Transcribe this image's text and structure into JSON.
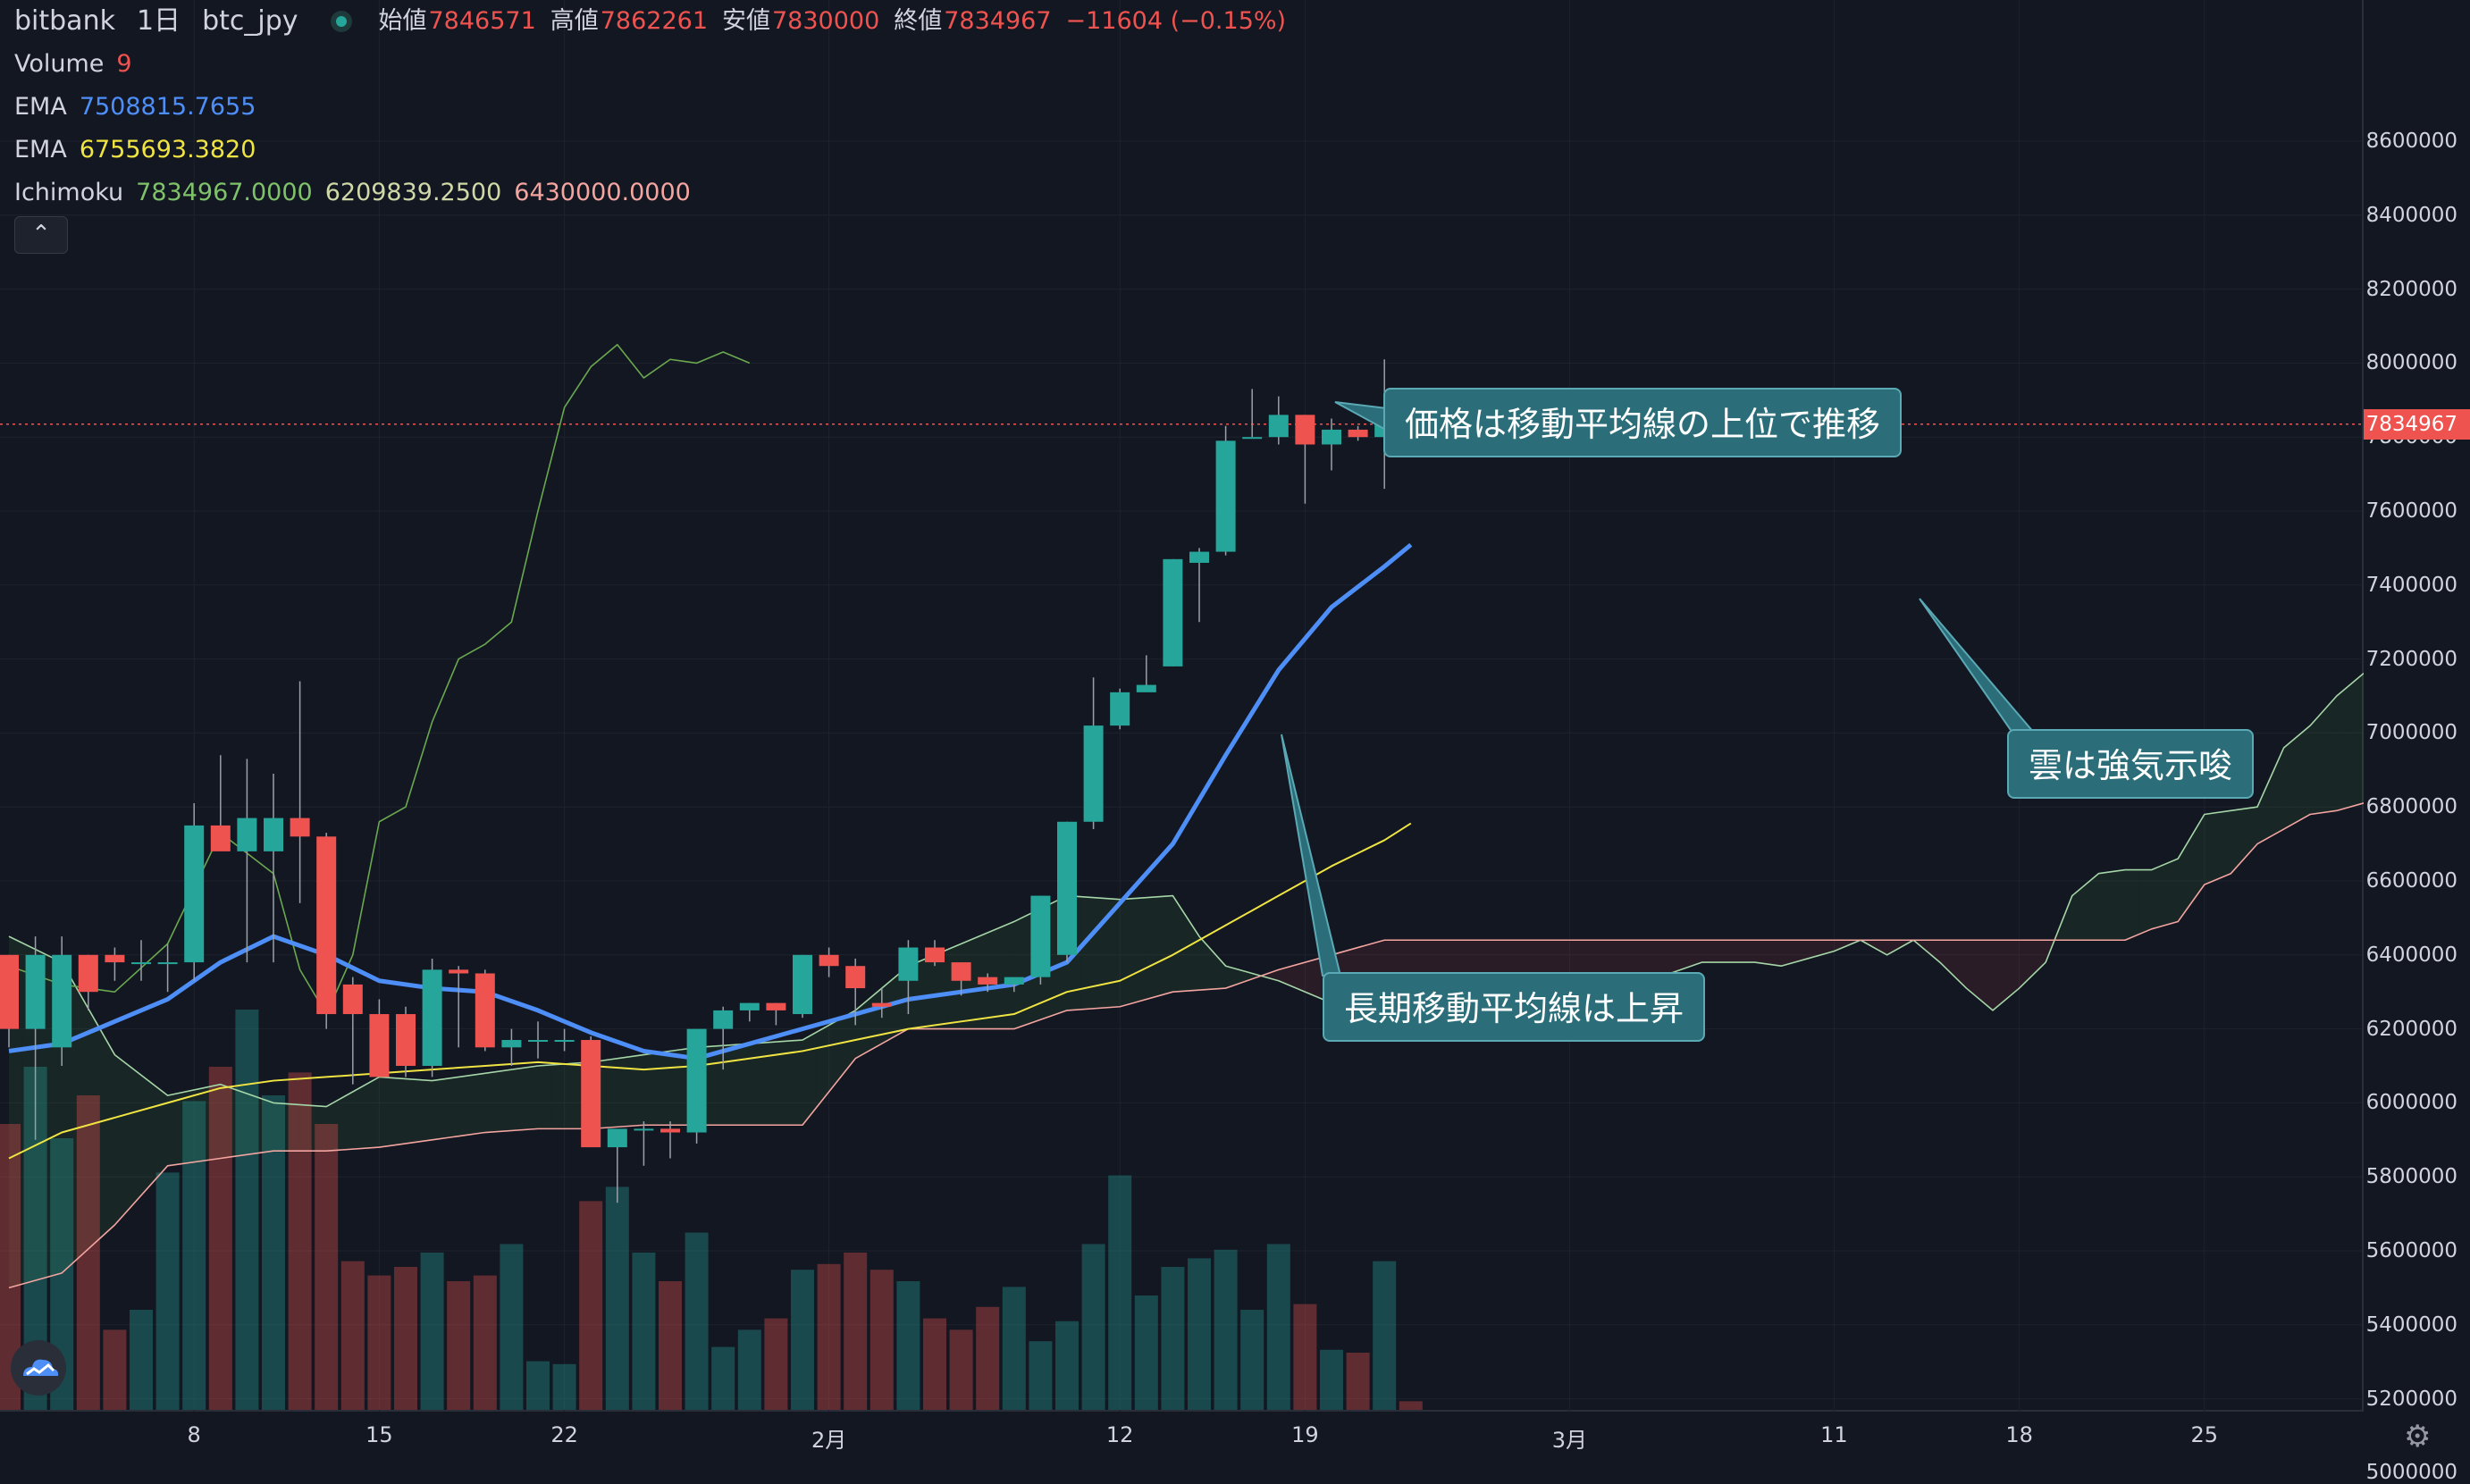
{
  "header": {
    "symbol": "bitbank",
    "interval": "1日",
    "pair": "btc_jpy",
    "ohlc": [
      {
        "label": "始値",
        "value": "7846571"
      },
      {
        "label": "高値",
        "value": "7862261"
      },
      {
        "label": "安値",
        "value": "7830000"
      },
      {
        "label": "終値",
        "value": "7834967"
      }
    ],
    "change": "−11604 (−0.15%)"
  },
  "indicators": [
    {
      "name": "Volume",
      "values": [
        "9"
      ],
      "colors": [
        "#ef5350"
      ]
    },
    {
      "name": "EMA",
      "values": [
        "7508815.7655"
      ],
      "colors": [
        "#4e8ef7"
      ]
    },
    {
      "name": "EMA",
      "values": [
        "6755693.3820"
      ],
      "colors": [
        "#f0e442"
      ]
    },
    {
      "name": "Ichimoku",
      "values": [
        "7834967.0000",
        "6209839.2500",
        "6430000.0000"
      ],
      "colors": [
        "#7fc26a",
        "#cfd8a6",
        "#f4a5a0"
      ]
    }
  ],
  "collapse_icon": "chevron-up-icon",
  "price_axis": {
    "ticks": [
      "8600000",
      "8400000",
      "8200000",
      "8000000",
      "7800000",
      "7600000",
      "7400000",
      "7200000",
      "7000000",
      "6800000",
      "6600000",
      "6400000",
      "6200000",
      "6000000",
      "5800000",
      "5600000",
      "5400000",
      "5200000",
      "5000000"
    ],
    "last_price": "7834967"
  },
  "time_axis": {
    "labels": [
      {
        "text": "8",
        "day": 8
      },
      {
        "text": "15",
        "day": 15
      },
      {
        "text": "22",
        "day": 22
      },
      {
        "text": "2月",
        "day": 32
      },
      {
        "text": "12",
        "day": 43
      },
      {
        "text": "19",
        "day": 50
      },
      {
        "text": "3月",
        "day": 60
      },
      {
        "text": "11",
        "day": 70
      },
      {
        "text": "18",
        "day": 77
      },
      {
        "text": "25",
        "day": 84
      }
    ]
  },
  "annotations": [
    {
      "text": "価格は移動平均線の上位で推移"
    },
    {
      "text": "雲は強気示唆"
    },
    {
      "text": "長期移動平均線は上昇"
    }
  ],
  "colors": {
    "up": "#26a69a",
    "down": "#ef5350",
    "background": "#131722",
    "grid": "#1e222d",
    "ema_fast": "#4e8ef7",
    "ema_slow": "#f0e442"
  },
  "chart_data": {
    "type": "candlestick",
    "x_unit": "day (1 = Jan 1)",
    "ylim": [
      4900000,
      8700000
    ],
    "candles": [
      [
        1,
        6400000,
        6400000,
        6150000,
        6200000,
        1.0
      ],
      [
        2,
        6200000,
        6450000,
        5900000,
        6400000,
        1.2
      ],
      [
        3,
        6150000,
        6450000,
        6100000,
        6400000,
        0.95
      ],
      [
        4,
        6400000,
        6400000,
        6250000,
        6300000,
        1.1
      ],
      [
        5,
        6400000,
        6420000,
        6330000,
        6380000,
        0.28
      ],
      [
        6,
        6380000,
        6440000,
        6330000,
        6380000,
        0.35
      ],
      [
        7,
        6380000,
        6430000,
        6300000,
        6380000,
        0.83
      ],
      [
        8,
        6380000,
        6810000,
        6330000,
        6750000,
        1.08
      ],
      [
        9,
        6750000,
        6940000,
        6700000,
        6680000,
        1.2
      ],
      [
        10,
        6680000,
        6930000,
        6380000,
        6770000,
        1.4
      ],
      [
        11,
        6680000,
        6890000,
        6380000,
        6770000,
        1.1
      ],
      [
        12,
        6770000,
        7140000,
        6540000,
        6720000,
        1.18
      ],
      [
        13,
        6720000,
        6730000,
        6200000,
        6240000,
        1.0
      ],
      [
        14,
        6320000,
        6340000,
        6050000,
        6240000,
        0.52
      ],
      [
        15,
        6240000,
        6280000,
        6070000,
        6070000,
        0.47
      ],
      [
        16,
        6240000,
        6260000,
        6070000,
        6100000,
        0.5
      ],
      [
        17,
        6100000,
        6390000,
        6070000,
        6360000,
        0.55
      ],
      [
        18,
        6360000,
        6370000,
        6150000,
        6350000,
        0.45
      ],
      [
        19,
        6350000,
        6360000,
        6140000,
        6150000,
        0.47
      ],
      [
        20,
        6150000,
        6200000,
        6100000,
        6170000,
        0.58
      ],
      [
        21,
        6170000,
        6220000,
        6120000,
        6170000,
        0.17
      ],
      [
        22,
        6170000,
        6200000,
        6140000,
        6170000,
        0.16
      ],
      [
        23,
        6170000,
        6180000,
        5880000,
        5880000,
        0.73
      ],
      [
        24,
        5880000,
        5920000,
        5730000,
        5930000,
        0.78
      ],
      [
        25,
        5930000,
        5950000,
        5830000,
        5930000,
        0.55
      ],
      [
        26,
        5930000,
        5950000,
        5850000,
        5920000,
        0.45
      ],
      [
        27,
        5920000,
        6180000,
        5890000,
        6200000,
        0.62
      ],
      [
        28,
        6200000,
        6260000,
        6090000,
        6250000,
        0.22
      ],
      [
        29,
        6250000,
        6270000,
        6220000,
        6270000,
        0.28
      ],
      [
        30,
        6270000,
        6270000,
        6210000,
        6250000,
        0.32
      ],
      [
        31,
        6240000,
        6400000,
        6230000,
        6400000,
        0.49
      ],
      [
        32,
        6400000,
        6420000,
        6340000,
        6370000,
        0.51
      ],
      [
        33,
        6370000,
        6390000,
        6210000,
        6310000,
        0.55
      ],
      [
        34,
        6270000,
        6310000,
        6230000,
        6260000,
        0.49
      ],
      [
        35,
        6330000,
        6440000,
        6240000,
        6420000,
        0.45
      ],
      [
        36,
        6420000,
        6440000,
        6370000,
        6380000,
        0.32
      ],
      [
        37,
        6380000,
        6380000,
        6290000,
        6330000,
        0.28
      ],
      [
        38,
        6340000,
        6350000,
        6300000,
        6320000,
        0.36
      ],
      [
        39,
        6320000,
        6330000,
        6300000,
        6340000,
        0.43
      ],
      [
        40,
        6340000,
        6560000,
        6320000,
        6560000,
        0.24
      ],
      [
        41,
        6400000,
        6760000,
        6380000,
        6760000,
        0.31
      ],
      [
        42,
        6760000,
        7150000,
        6740000,
        7020000,
        0.58
      ],
      [
        43,
        7020000,
        7120000,
        7010000,
        7110000,
        0.82
      ],
      [
        44,
        7110000,
        7210000,
        7120000,
        7130000,
        0.4
      ],
      [
        45,
        7180000,
        7470000,
        7180000,
        7470000,
        0.5
      ],
      [
        46,
        7460000,
        7500000,
        7300000,
        7490000,
        0.53
      ],
      [
        47,
        7490000,
        7830000,
        7480000,
        7790000,
        0.56
      ],
      [
        48,
        7800000,
        7930000,
        7800000,
        7800000,
        0.35
      ],
      [
        49,
        7800000,
        7910000,
        7780000,
        7860000,
        0.58
      ],
      [
        50,
        7860000,
        7860000,
        7620000,
        7780000,
        0.37
      ],
      [
        51,
        7780000,
        7850000,
        7710000,
        7820000,
        0.21
      ],
      [
        52,
        7820000,
        7830000,
        7790000,
        7800000,
        0.2
      ],
      [
        53,
        7800000,
        8010000,
        7660000,
        7850000,
        0.52
      ],
      [
        54,
        7846571,
        7862261,
        7830000,
        7834967,
        0.03
      ]
    ],
    "ema_fast": [
      [
        1,
        6140000
      ],
      [
        3,
        6160000
      ],
      [
        5,
        6220000
      ],
      [
        7,
        6280000
      ],
      [
        9,
        6380000
      ],
      [
        11,
        6450000
      ],
      [
        13,
        6400000
      ],
      [
        15,
        6330000
      ],
      [
        17,
        6310000
      ],
      [
        19,
        6300000
      ],
      [
        21,
        6250000
      ],
      [
        23,
        6190000
      ],
      [
        25,
        6140000
      ],
      [
        27,
        6120000
      ],
      [
        29,
        6160000
      ],
      [
        31,
        6200000
      ],
      [
        33,
        6240000
      ],
      [
        35,
        6280000
      ],
      [
        37,
        6300000
      ],
      [
        39,
        6320000
      ],
      [
        41,
        6380000
      ],
      [
        43,
        6540000
      ],
      [
        45,
        6700000
      ],
      [
        47,
        6940000
      ],
      [
        49,
        7170000
      ],
      [
        51,
        7340000
      ],
      [
        53,
        7450000
      ],
      [
        54,
        7508815
      ]
    ],
    "ema_slow": [
      [
        1,
        5850000
      ],
      [
        3,
        5920000
      ],
      [
        5,
        5960000
      ],
      [
        7,
        6000000
      ],
      [
        9,
        6040000
      ],
      [
        11,
        6060000
      ],
      [
        13,
        6070000
      ],
      [
        15,
        6080000
      ],
      [
        17,
        6090000
      ],
      [
        19,
        6100000
      ],
      [
        21,
        6110000
      ],
      [
        23,
        6100000
      ],
      [
        25,
        6090000
      ],
      [
        27,
        6100000
      ],
      [
        29,
        6120000
      ],
      [
        31,
        6140000
      ],
      [
        33,
        6170000
      ],
      [
        35,
        6200000
      ],
      [
        37,
        6220000
      ],
      [
        39,
        6240000
      ],
      [
        41,
        6300000
      ],
      [
        43,
        6330000
      ],
      [
        45,
        6400000
      ],
      [
        47,
        6480000
      ],
      [
        49,
        6560000
      ],
      [
        51,
        6640000
      ],
      [
        53,
        6710000
      ],
      [
        54,
        6755693
      ]
    ],
    "ichimoku_lagging": [
      [
        1,
        6370000
      ],
      [
        3,
        6320000
      ],
      [
        5,
        6300000
      ],
      [
        7,
        6430000
      ],
      [
        9,
        6730000
      ],
      [
        11,
        6620000
      ],
      [
        12,
        6360000
      ],
      [
        13,
        6240000
      ],
      [
        14,
        6400000
      ],
      [
        15,
        6760000
      ],
      [
        16,
        6800000
      ],
      [
        17,
        7030000
      ],
      [
        18,
        7200000
      ],
      [
        19,
        7240000
      ],
      [
        20,
        7300000
      ],
      [
        21,
        7600000
      ],
      [
        22,
        7880000
      ],
      [
        23,
        7990000
      ],
      [
        24,
        8050000
      ],
      [
        25,
        7960000
      ],
      [
        26,
        8010000
      ],
      [
        27,
        8000000
      ],
      [
        28,
        8030000
      ],
      [
        29,
        8000000
      ]
    ],
    "ichimoku_span_a": [
      [
        1,
        6450000
      ],
      [
        3,
        6380000
      ],
      [
        5,
        6130000
      ],
      [
        7,
        6020000
      ],
      [
        9,
        6050000
      ],
      [
        11,
        6000000
      ],
      [
        13,
        5990000
      ],
      [
        15,
        6070000
      ],
      [
        17,
        6060000
      ],
      [
        19,
        6080000
      ],
      [
        21,
        6100000
      ],
      [
        23,
        6110000
      ],
      [
        25,
        6130000
      ],
      [
        27,
        6150000
      ],
      [
        29,
        6160000
      ],
      [
        31,
        6170000
      ],
      [
        33,
        6250000
      ],
      [
        35,
        6370000
      ],
      [
        37,
        6430000
      ],
      [
        39,
        6490000
      ],
      [
        41,
        6560000
      ],
      [
        43,
        6550000
      ],
      [
        45,
        6560000
      ],
      [
        46,
        6450000
      ],
      [
        47,
        6370000
      ],
      [
        49,
        6330000
      ],
      [
        51,
        6270000
      ],
      [
        53,
        6240000
      ],
      [
        55,
        6240000
      ],
      [
        57,
        6250000
      ],
      [
        59,
        6300000
      ],
      [
        61,
        6320000
      ],
      [
        63,
        6330000
      ],
      [
        65,
        6380000
      ],
      [
        67,
        6380000
      ],
      [
        68,
        6370000
      ],
      [
        69,
        6390000
      ],
      [
        70,
        6410000
      ],
      [
        71,
        6440000
      ],
      [
        72,
        6400000
      ],
      [
        73,
        6440000
      ],
      [
        74,
        6380000
      ],
      [
        75,
        6310000
      ],
      [
        76,
        6250000
      ],
      [
        77,
        6310000
      ],
      [
        78,
        6380000
      ],
      [
        79,
        6560000
      ],
      [
        80,
        6620000
      ],
      [
        81,
        6630000
      ],
      [
        82,
        6630000
      ],
      [
        83,
        6660000
      ],
      [
        84,
        6780000
      ],
      [
        85,
        6790000
      ],
      [
        86,
        6800000
      ],
      [
        87,
        6960000
      ],
      [
        88,
        7020000
      ],
      [
        89,
        7100000
      ],
      [
        90,
        7160000
      ],
      [
        91,
        7200000
      ],
      [
        92,
        7340000
      ]
    ],
    "ichimoku_span_b": [
      [
        1,
        5500000
      ],
      [
        3,
        5540000
      ],
      [
        5,
        5670000
      ],
      [
        7,
        5830000
      ],
      [
        9,
        5850000
      ],
      [
        11,
        5870000
      ],
      [
        13,
        5870000
      ],
      [
        15,
        5880000
      ],
      [
        17,
        5900000
      ],
      [
        19,
        5920000
      ],
      [
        21,
        5930000
      ],
      [
        23,
        5930000
      ],
      [
        25,
        5940000
      ],
      [
        27,
        5940000
      ],
      [
        29,
        5940000
      ],
      [
        31,
        5940000
      ],
      [
        33,
        6120000
      ],
      [
        35,
        6200000
      ],
      [
        37,
        6200000
      ],
      [
        39,
        6200000
      ],
      [
        41,
        6250000
      ],
      [
        43,
        6260000
      ],
      [
        45,
        6300000
      ],
      [
        47,
        6310000
      ],
      [
        49,
        6360000
      ],
      [
        51,
        6400000
      ],
      [
        53,
        6440000
      ],
      [
        55,
        6440000
      ],
      [
        57,
        6440000
      ],
      [
        59,
        6440000
      ],
      [
        61,
        6440000
      ],
      [
        63,
        6440000
      ],
      [
        65,
        6440000
      ],
      [
        67,
        6440000
      ],
      [
        69,
        6440000
      ],
      [
        71,
        6440000
      ],
      [
        73,
        6440000
      ],
      [
        75,
        6440000
      ],
      [
        77,
        6440000
      ],
      [
        79,
        6440000
      ],
      [
        81,
        6440000
      ],
      [
        82,
        6470000
      ],
      [
        83,
        6490000
      ],
      [
        84,
        6590000
      ],
      [
        85,
        6620000
      ],
      [
        86,
        6700000
      ],
      [
        87,
        6740000
      ],
      [
        88,
        6780000
      ],
      [
        89,
        6790000
      ],
      [
        90,
        6810000
      ],
      [
        91,
        6810000
      ],
      [
        92,
        6810000
      ]
    ]
  }
}
